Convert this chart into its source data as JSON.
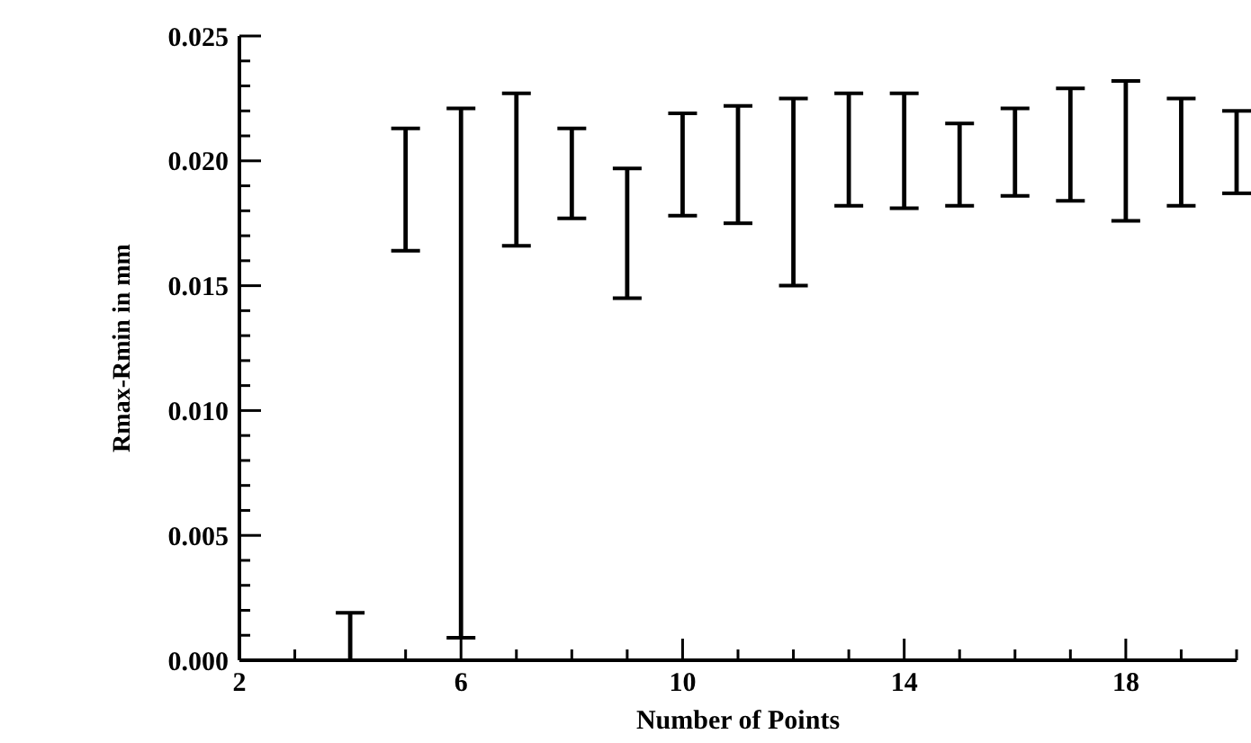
{
  "chart_data": {
    "type": "bar",
    "xlabel": "Number of Points",
    "ylabel": "Rmax-Rmin in mm",
    "x": [
      4,
      5,
      6,
      7,
      8,
      9,
      10,
      11,
      12,
      13,
      14,
      15,
      16,
      17,
      18,
      19,
      20
    ],
    "base": [
      0,
      0.0164,
      0.0009,
      0.0166,
      0.0177,
      0.0145,
      0.0178,
      0.0175,
      0.015,
      0.0182,
      0.0181,
      0.0182,
      0.0186,
      0.0184,
      0.0176,
      0.0182,
      0.0187
    ],
    "values": [
      0.0019,
      0.0049,
      0.0212,
      0.0061,
      0.0036,
      0.0052,
      0.0041,
      0.0047,
      0.0075,
      0.0045,
      0.0046,
      0.0033,
      0.0035,
      0.0045,
      0.0056,
      0.0043,
      0.0033
    ],
    "color": "#000000",
    "xlim": [
      2,
      20
    ],
    "xticks": [
      2,
      {
        "value": 3,
        "label": null
      },
      {
        "value": 4,
        "label": null
      },
      {
        "value": 5,
        "label": null
      },
      6,
      {
        "value": 7,
        "label": null
      },
      {
        "value": 8,
        "label": null
      },
      {
        "value": 9,
        "label": null
      },
      10,
      {
        "value": 11,
        "label": null
      },
      {
        "value": 12,
        "label": null
      },
      {
        "value": 13,
        "label": null
      },
      14,
      {
        "value": 15,
        "label": null
      },
      {
        "value": 16,
        "label": null
      },
      {
        "value": 17,
        "label": null
      },
      18,
      {
        "value": 19,
        "label": null
      },
      {
        "value": 20,
        "label": null
      }
    ],
    "ylim": [
      0,
      0.025
    ],
    "yticks": [
      {
        "value": 0,
        "label": "0.000"
      },
      {
        "value": 0.001,
        "label": null
      },
      {
        "value": 0.002,
        "label": null
      },
      {
        "value": 0.003,
        "label": null
      },
      {
        "value": 0.004,
        "label": null
      },
      0.005,
      {
        "value": 0.006,
        "label": null
      },
      {
        "value": 0.007,
        "label": null
      },
      {
        "value": 0.008,
        "label": null
      },
      {
        "value": 0.009,
        "label": null
      },
      {
        "value": 0.01,
        "label": "0.010"
      },
      {
        "value": 0.011,
        "label": null
      },
      {
        "value": 0.012,
        "label": null
      },
      {
        "value": 0.013,
        "label": null
      },
      {
        "value": 0.014,
        "label": null
      },
      0.015,
      {
        "value": 0.016,
        "label": null
      },
      {
        "value": 0.017,
        "label": null
      },
      {
        "value": 0.018,
        "label": null
      },
      {
        "value": 0.019,
        "label": null
      },
      {
        "value": 0.02,
        "label": "0.020"
      },
      {
        "value": 0.021,
        "label": null
      },
      {
        "value": 0.022,
        "label": null
      },
      {
        "value": 0.023,
        "label": null
      },
      {
        "value": 0.024,
        "label": null
      },
      0.025
    ]
  }
}
